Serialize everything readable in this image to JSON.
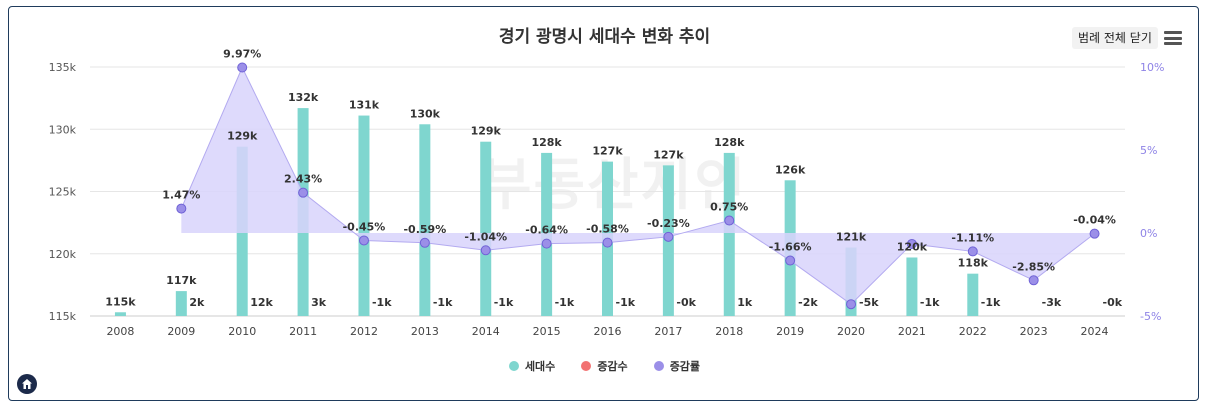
{
  "chart_data": {
    "type": "bar",
    "title": "경기 광명시 세대수 변화 추이",
    "categories": [
      "2008",
      "2009",
      "2010",
      "2011",
      "2012",
      "2013",
      "2014",
      "2015",
      "2016",
      "2017",
      "2018",
      "2019",
      "2020",
      "2021",
      "2022",
      "2023",
      "2024"
    ],
    "series": [
      {
        "name": "세대수",
        "type": "bar",
        "axis": "left",
        "color": "#7fd6cf",
        "values": [
          115300,
          117000,
          128600,
          131700,
          131100,
          130400,
          129000,
          128100,
          127400,
          127100,
          128100,
          125900,
          120500,
          119700,
          118400,
          115000,
          115000
        ],
        "labels": [
          "115k",
          "117k",
          "129k",
          "132k",
          "131k",
          "130k",
          "129k",
          "128k",
          "127k",
          "127k",
          "128k",
          "126k",
          "121k",
          "120k",
          "118k",
          "",
          ""
        ]
      },
      {
        "name": "증감수",
        "type": "bar",
        "axis": "left",
        "color": "#f27272",
        "values": [
          null,
          1700,
          11600,
          3100,
          -600,
          -800,
          -1300,
          -800,
          -700,
          -300,
          1000,
          -2100,
          -5400,
          -1300,
          -1300,
          -3400,
          0
        ],
        "labels": [
          "",
          "2k",
          "12k",
          "3k",
          "-1k",
          "-1k",
          "-1k",
          "-1k",
          "-1k",
          "-0k",
          "1k",
          "-2k",
          "-5k",
          "-1k",
          "-1k",
          "-3k",
          "-0k"
        ]
      },
      {
        "name": "증감률",
        "type": "area",
        "axis": "right",
        "color": "#9b8fe8",
        "values": [
          null,
          1.47,
          9.97,
          2.43,
          -0.45,
          -0.59,
          -1.04,
          -0.64,
          -0.58,
          -0.23,
          0.75,
          -1.66,
          -4.29,
          -0.66,
          -1.11,
          -2.85,
          -0.04
        ],
        "labels": [
          "",
          "1.47%",
          "9.97%",
          "2.43%",
          "-0.45%",
          "-0.59%",
          "-1.04%",
          "-0.64%",
          "-0.58%",
          "-0.23%",
          "0.75%",
          "-1.66%",
          "",
          "",
          "-1.11%",
          "-2.85%",
          "-0.04%"
        ]
      }
    ],
    "y_left": {
      "ticks": [
        "115k",
        "120k",
        "125k",
        "130k",
        "135k"
      ],
      "values": [
        115000,
        120000,
        125000,
        130000,
        135000
      ],
      "ylim": [
        115000,
        135000
      ]
    },
    "y_right": {
      "ticks": [
        "-5%",
        "0%",
        "5%",
        "10%"
      ],
      "values": [
        -5,
        0,
        5,
        10
      ],
      "ylim": [
        -5,
        10
      ]
    },
    "grid": true,
    "legend_position": "bottom"
  },
  "ui": {
    "legend_toggle_label": "범례 전체 닫기",
    "menu_icon": "hamburger-menu-icon",
    "watermark": "부동산지인",
    "home_icon": "home-icon"
  },
  "colors": {
    "bar": "#7fd6cf",
    "change": "#f27272",
    "rate": "#9b8fe8",
    "rate_fill": "#d8d3fb",
    "frame": "#1f3b5c"
  }
}
